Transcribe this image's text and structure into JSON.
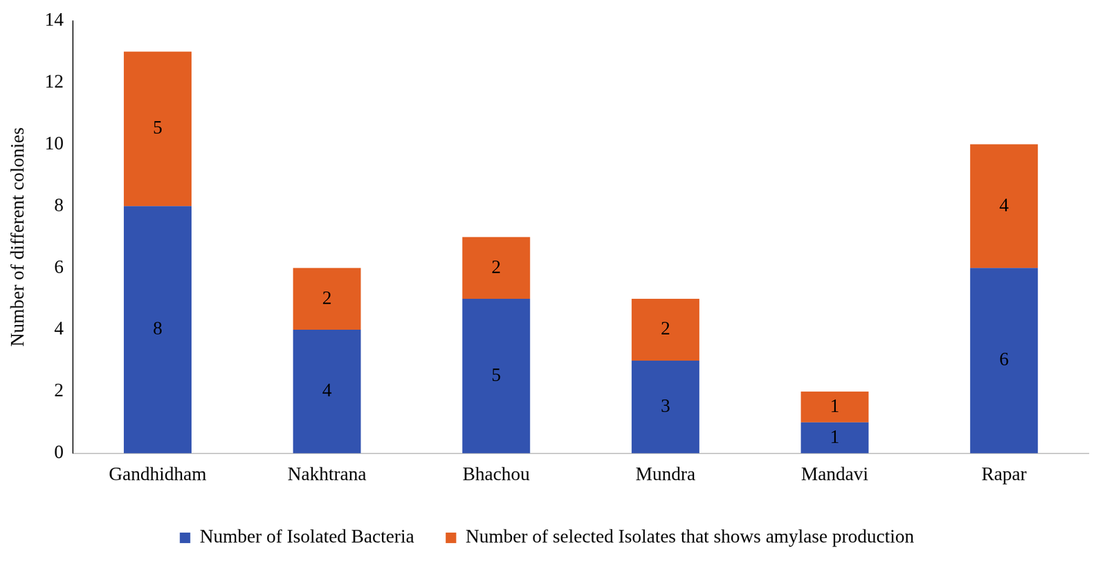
{
  "chart_data": {
    "type": "bar",
    "categories": [
      "Gandhidham",
      "Nakhtrana",
      "Bhachou",
      "Mundra",
      "Mandavi",
      "Rapar"
    ],
    "series": [
      {
        "name": "Number of Isolated Bacteria",
        "color": "#3253b0",
        "values": [
          8,
          4,
          5,
          3,
          1,
          6
        ]
      },
      {
        "name": "Number of selected Isolates that shows amylase production",
        "color": "#e35f22",
        "values": [
          5,
          2,
          2,
          2,
          1,
          4
        ]
      }
    ],
    "ylabel": "Number of different colonies",
    "ylim": [
      0,
      14
    ],
    "yticks": [
      0,
      2,
      4,
      6,
      8,
      10,
      12,
      14
    ],
    "stacked": true,
    "grid": false,
    "legend": "bottom",
    "data_labels": true
  }
}
